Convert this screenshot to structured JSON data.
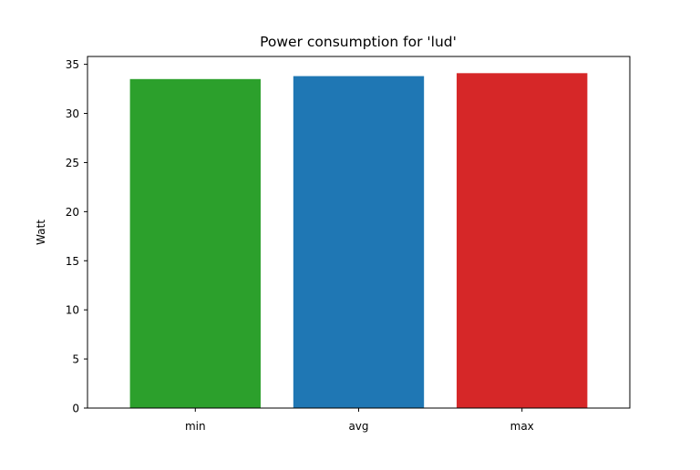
{
  "chart_data": {
    "type": "bar",
    "title": "Power consumption for 'lud'",
    "xlabel": "",
    "ylabel": "Watt",
    "categories": [
      "min",
      "avg",
      "max"
    ],
    "values": [
      33.5,
      33.8,
      34.1
    ],
    "colors": [
      "#2ca02c",
      "#1f77b4",
      "#d62728"
    ],
    "ylim": [
      0,
      35.8
    ],
    "yticks": [
      0,
      5,
      10,
      15,
      20,
      25,
      30,
      35
    ],
    "grid": false,
    "legend": "none"
  }
}
